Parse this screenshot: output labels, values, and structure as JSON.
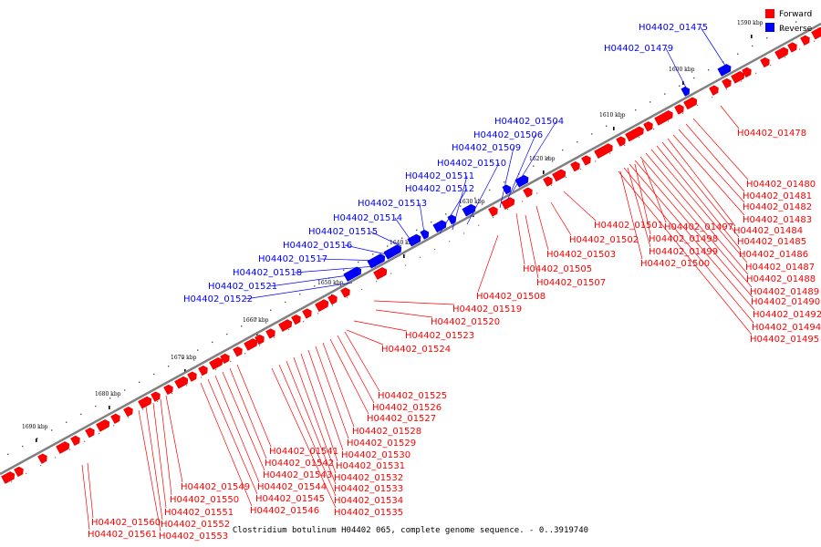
{
  "caption": "Clostridium botulinum H04402 065, complete genome sequence. - 0..3919740",
  "legend": [
    {
      "label": "Forward",
      "color": "#ff0000"
    },
    {
      "label": "Reverse",
      "color": "#0000ff"
    }
  ],
  "colors": {
    "forward": "#ff0000",
    "reverse": "#0000ff",
    "backbone": "#808080"
  },
  "ticks": [
    "1590 kbp",
    "1600 kbp",
    "1610 kbp",
    "1620 kbp",
    "1630 kbp",
    "1640 kbp",
    "1650 kbp",
    "1660 kbp",
    "1670 kbp",
    "1680 kbp",
    "1690 kbp"
  ],
  "genes_reverse": [
    "H04402_01475",
    "H04402_01479",
    "H04402_01504",
    "H04402_01506",
    "H04402_01509",
    "H04402_01510",
    "H04402_01511",
    "H04402_01512",
    "H04402_01513",
    "H04402_01514",
    "H04402_01515",
    "H04402_01516",
    "H04402_01517",
    "H04402_01518",
    "H04402_01521",
    "H04402_01522"
  ],
  "genes_forward": [
    "H04402_01478",
    "H04402_01480",
    "H04402_01481",
    "H04402_01482",
    "H04402_01483",
    "H04402_01484",
    "H04402_01485",
    "H04402_01486",
    "H04402_01487",
    "H04402_01488",
    "H04402_01489",
    "H04402_01490",
    "H04402_01492",
    "H04402_01494",
    "H04402_01495",
    "H04402_01497",
    "H04402_01498",
    "H04402_01499",
    "H04402_01500",
    "H04402_01501",
    "H04402_01502",
    "H04402_01503",
    "H04402_01505",
    "H04402_01507",
    "H04402_01508",
    "H04402_01519",
    "H04402_01520",
    "H04402_01523",
    "H04402_01524",
    "H04402_01525",
    "H04402_01526",
    "H04402_01527",
    "H04402_01528",
    "H04402_01529",
    "H04402_01530",
    "H04402_01531",
    "H04402_01532",
    "H04402_01533",
    "H04402_01534",
    "H04402_01535",
    "H04402_01541",
    "H04402_01542",
    "H04402_01543",
    "H04402_01544",
    "H04402_01545",
    "H04402_01546",
    "H04402_01549",
    "H04402_01550",
    "H04402_01551",
    "H04402_01552",
    "H04402_01553",
    "H04402_01560",
    "H04402_01561"
  ]
}
